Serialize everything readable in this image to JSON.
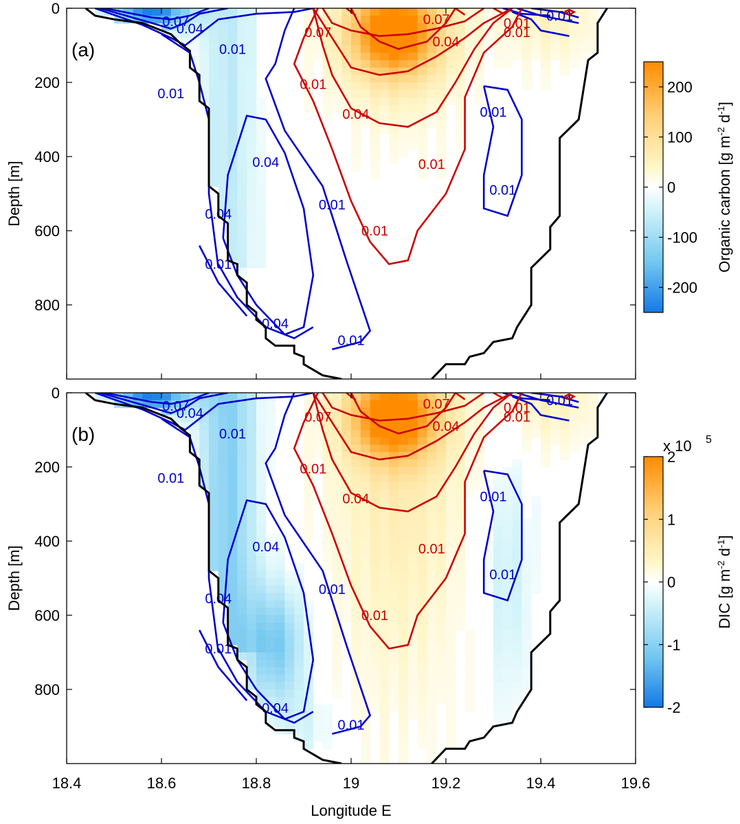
{
  "chart_data": [
    {
      "type": "heatmap",
      "panel_label": "(a)",
      "xlabel": "",
      "ylabel": "Depth [m]",
      "xlim": [
        18.4,
        19.6
      ],
      "ylim": [
        1000,
        0
      ],
      "x_ticks": [
        "18.4",
        "18.6",
        "18.8",
        "19",
        "19.2",
        "19.4",
        "19.6"
      ],
      "y_ticks": [
        "0",
        "200",
        "400",
        "600",
        "800"
      ],
      "colorbar": {
        "label": "Organic carbon [g m-2 d-1]",
        "label_main": "Organic carbon [g m",
        "label_sup1": "-2",
        "label_mid": " d",
        "label_sup2": "-1",
        "label_end": "]",
        "range": [
          -250,
          250
        ],
        "ticks": [
          "200",
          "100",
          "0",
          "-100",
          "-200"
        ],
        "multiplier": "",
        "colors": [
          "#1479e6",
          "#72c7f0",
          "#d6f5fa",
          "#ffffff",
          "#fff6c8",
          "#ffd078",
          "#ff8c00"
        ]
      },
      "contours": {
        "blue": [
          {
            "level": "0.07",
            "color": "#0000cc"
          },
          {
            "level": "0.04",
            "color": "#0000cc"
          },
          {
            "level": "0.01",
            "color": "#0000cc"
          },
          {
            "level": "0.04",
            "color": "#0000cc"
          },
          {
            "level": "0.04",
            "color": "#0000cc"
          },
          {
            "level": "0.01",
            "color": "#0000cc"
          },
          {
            "level": "0.01",
            "color": "#0000cc"
          },
          {
            "level": "0.04",
            "color": "#0000cc"
          },
          {
            "level": "0.01",
            "color": "#0000cc"
          },
          {
            "level": "0.01",
            "color": "#0000cc"
          },
          {
            "level": "0.01",
            "color": "#0000cc"
          },
          {
            "level": "0.01",
            "color": "#0000cc"
          },
          {
            "level": "0.01",
            "color": "#0000cc"
          }
        ],
        "red": [
          {
            "level": "0.07",
            "color": "#cc0000"
          },
          {
            "level": "0.07",
            "color": "#cc0000"
          },
          {
            "level": "0.04",
            "color": "#cc0000"
          },
          {
            "level": "0.01",
            "color": "#cc0000"
          },
          {
            "level": "0.04",
            "color": "#cc0000"
          },
          {
            "level": "0.01",
            "color": "#cc0000"
          },
          {
            "level": "0.01",
            "color": "#cc0000"
          },
          {
            "level": "0.01",
            "color": "#cc0000"
          },
          {
            "level": "0.01",
            "color": "#cc0000"
          }
        ]
      }
    },
    {
      "type": "heatmap",
      "panel_label": "(b)",
      "xlabel": "Longitude E",
      "ylabel": "Depth [m]",
      "xlim": [
        18.4,
        19.6
      ],
      "ylim": [
        1000,
        0
      ],
      "x_ticks": [
        "18.4",
        "18.6",
        "18.8",
        "19",
        "19.2",
        "19.4",
        "19.6"
      ],
      "y_ticks": [
        "0",
        "200",
        "400",
        "600",
        "800"
      ],
      "colorbar": {
        "label": "DIC [g m-2 d-1]",
        "label_main": "DIC  [g m",
        "label_sup1": "-2",
        "label_mid": " d",
        "label_sup2": "-1",
        "label_end": "]",
        "range": [
          -2,
          2
        ],
        "ticks": [
          "2",
          "1",
          "0",
          "-1",
          "-2"
        ],
        "multiplier": "x 10",
        "multiplier_exp": "5",
        "colors": [
          "#1479e6",
          "#72c7f0",
          "#d6f5fa",
          "#ffffff",
          "#fff6c8",
          "#ffd078",
          "#ff8c00"
        ]
      },
      "contours": {
        "blue": [
          {
            "level": "0.07",
            "color": "#0000cc"
          },
          {
            "level": "0.04",
            "color": "#0000cc"
          },
          {
            "level": "0.01",
            "color": "#0000cc"
          },
          {
            "level": "0.04",
            "color": "#0000cc"
          },
          {
            "level": "0.04",
            "color": "#0000cc"
          },
          {
            "level": "0.01",
            "color": "#0000cc"
          },
          {
            "level": "0.01",
            "color": "#0000cc"
          },
          {
            "level": "0.04",
            "color": "#0000cc"
          },
          {
            "level": "0.01",
            "color": "#0000cc"
          },
          {
            "level": "0.01",
            "color": "#0000cc"
          },
          {
            "level": "0.01",
            "color": "#0000cc"
          },
          {
            "level": "0.01",
            "color": "#0000cc"
          },
          {
            "level": "0.01",
            "color": "#0000cc"
          }
        ],
        "red": [
          {
            "level": "0.07",
            "color": "#cc0000"
          },
          {
            "level": "0.07",
            "color": "#cc0000"
          },
          {
            "level": "0.04",
            "color": "#cc0000"
          },
          {
            "level": "0.01",
            "color": "#cc0000"
          },
          {
            "level": "0.04",
            "color": "#cc0000"
          },
          {
            "level": "0.01",
            "color": "#cc0000"
          },
          {
            "level": "0.01",
            "color": "#cc0000"
          },
          {
            "level": "0.01",
            "color": "#cc0000"
          },
          {
            "level": "0.01",
            "color": "#cc0000"
          }
        ]
      }
    }
  ]
}
